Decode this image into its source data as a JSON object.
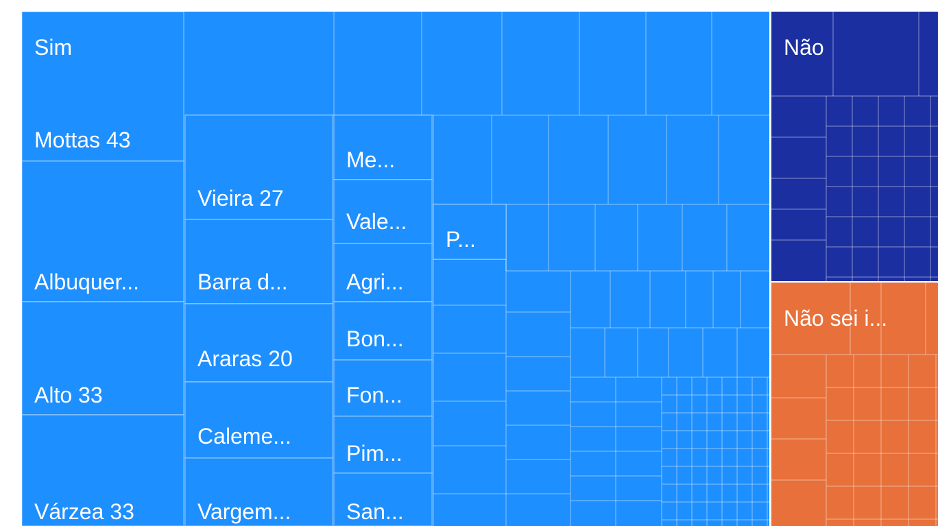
{
  "chart_data": {
    "type": "treemap",
    "groups": [
      {
        "name": "Sim",
        "color": "#1e8fff",
        "leaves": [
          {
            "label": "Mottas 43",
            "value": 43
          },
          {
            "label": "Albuquer...",
            "value": 40
          },
          {
            "label": "Alto 33",
            "value": 33
          },
          {
            "label": "Várzea 33",
            "value": 33
          },
          {
            "label": "Vieira 27",
            "value": 27
          },
          {
            "label": "Barra d...",
            "value": 22
          },
          {
            "label": "Araras 20",
            "value": 20
          },
          {
            "label": "Caleme...",
            "value": 20
          },
          {
            "label": "Vargem...",
            "value": 18
          },
          {
            "label": "Me...",
            "value": 11
          },
          {
            "label": "Vale...",
            "value": 11
          },
          {
            "label": "Agri...",
            "value": 10
          },
          {
            "label": "Bon...",
            "value": 10
          },
          {
            "label": "Fon...",
            "value": 10
          },
          {
            "label": "Pim...",
            "value": 10
          },
          {
            "label": "San...",
            "value": 9
          },
          {
            "label": "P...",
            "value": 7
          }
        ]
      },
      {
        "name": "Não",
        "color": "#1b2fa0",
        "leaves": []
      },
      {
        "name": "Não sei i...",
        "color": "#e8703a",
        "leaves": []
      }
    ]
  }
}
